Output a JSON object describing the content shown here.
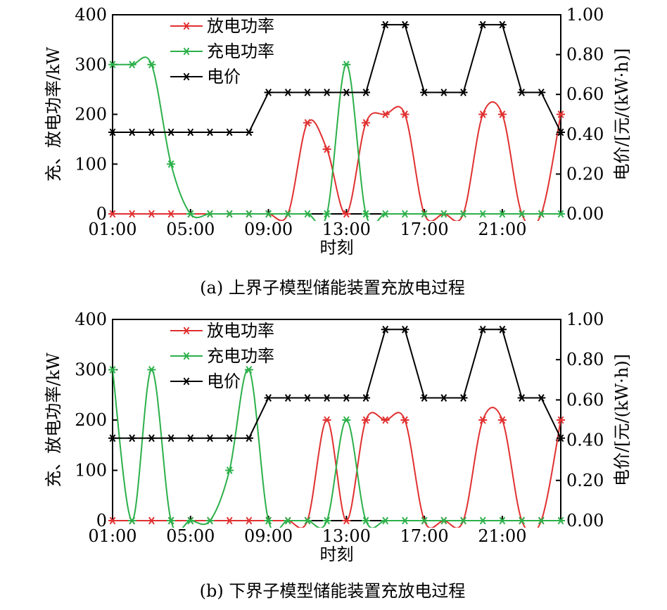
{
  "colors": {
    "discharge": "#e03030",
    "charge": "#2cb04a",
    "price": "#000000"
  },
  "chart_data": [
    {
      "type": "line",
      "title": "(a) 上界子模型储能装置充放电过程",
      "xlabel": "时刻",
      "ylabel": "充、放电功率/kW",
      "y2label": "电价/[元/(kW·h)]",
      "x_tick_labels": [
        "01:00",
        "05:00",
        "09:00",
        "13:00",
        "17:00",
        "21:00"
      ],
      "x_tick_hours": [
        1,
        5,
        9,
        13,
        17,
        21
      ],
      "xlim": [
        1,
        24
      ],
      "ylim": [
        0,
        400
      ],
      "y_ticks": [
        0,
        100,
        200,
        300,
        400
      ],
      "y2lim": [
        0,
        1.0
      ],
      "y2_ticks": [
        "0.00",
        "0.20",
        "0.40",
        "0.60",
        "0.80",
        "1.00"
      ],
      "legend_position": "top-left",
      "x": [
        1,
        2,
        3,
        4,
        5,
        6,
        7,
        8,
        9,
        10,
        11,
        12,
        13,
        14,
        15,
        16,
        17,
        18,
        19,
        20,
        21,
        22,
        23,
        24
      ],
      "series": [
        {
          "name": "放电功率",
          "axis": "left",
          "smooth": true,
          "values": [
            0,
            0,
            0,
            0,
            0,
            0,
            0,
            0,
            0,
            0,
            183,
            130,
            0,
            183,
            200,
            200,
            0,
            0,
            0,
            200,
            200,
            0,
            0,
            200
          ]
        },
        {
          "name": "充电功率",
          "axis": "left",
          "smooth": true,
          "values": [
            300,
            300,
            300,
            100,
            0,
            0,
            0,
            0,
            0,
            0,
            0,
            0,
            300,
            0,
            0,
            0,
            0,
            0,
            0,
            0,
            0,
            0,
            0,
            0
          ]
        },
        {
          "name": "电价",
          "axis": "right",
          "smooth": false,
          "values": [
            0.41,
            0.41,
            0.41,
            0.41,
            0.41,
            0.41,
            0.41,
            0.41,
            0.61,
            0.61,
            0.61,
            0.61,
            0.61,
            0.61,
            0.95,
            0.95,
            0.61,
            0.61,
            0.61,
            0.95,
            0.95,
            0.61,
            0.61,
            0.41
          ]
        }
      ]
    },
    {
      "type": "line",
      "title": "(b) 下界子模型储能装置充放电过程",
      "xlabel": "时刻",
      "ylabel": "充、放电功率/kW",
      "y2label": "电价/[元/(kW·h)]",
      "x_tick_labels": [
        "01:00",
        "05:00",
        "09:00",
        "13:00",
        "17:00",
        "21:00"
      ],
      "x_tick_hours": [
        1,
        5,
        9,
        13,
        17,
        21
      ],
      "xlim": [
        1,
        24
      ],
      "ylim": [
        0,
        400
      ],
      "y_ticks": [
        0,
        100,
        200,
        300,
        400
      ],
      "y2lim": [
        0,
        1.0
      ],
      "y2_ticks": [
        "0.00",
        "0.20",
        "0.40",
        "0.60",
        "0.80",
        "1.00"
      ],
      "legend_position": "top-left",
      "x": [
        1,
        2,
        3,
        4,
        5,
        6,
        7,
        8,
        9,
        10,
        11,
        12,
        13,
        14,
        15,
        16,
        17,
        18,
        19,
        20,
        21,
        22,
        23,
        24
      ],
      "series": [
        {
          "name": "放电功率",
          "axis": "left",
          "smooth": true,
          "values": [
            0,
            0,
            0,
            0,
            0,
            0,
            0,
            0,
            0,
            0,
            0,
            200,
            0,
            200,
            200,
            200,
            0,
            0,
            0,
            200,
            200,
            0,
            0,
            200
          ]
        },
        {
          "name": "充电功率",
          "axis": "left",
          "smooth": true,
          "values": [
            300,
            0,
            300,
            0,
            0,
            0,
            100,
            300,
            0,
            0,
            0,
            0,
            200,
            0,
            0,
            0,
            0,
            0,
            0,
            0,
            0,
            0,
            0,
            0
          ]
        },
        {
          "name": "电价",
          "axis": "right",
          "smooth": false,
          "values": [
            0.41,
            0.41,
            0.41,
            0.41,
            0.41,
            0.41,
            0.41,
            0.41,
            0.61,
            0.61,
            0.61,
            0.61,
            0.61,
            0.61,
            0.95,
            0.95,
            0.61,
            0.61,
            0.61,
            0.95,
            0.95,
            0.61,
            0.61,
            0.41
          ]
        }
      ]
    }
  ]
}
